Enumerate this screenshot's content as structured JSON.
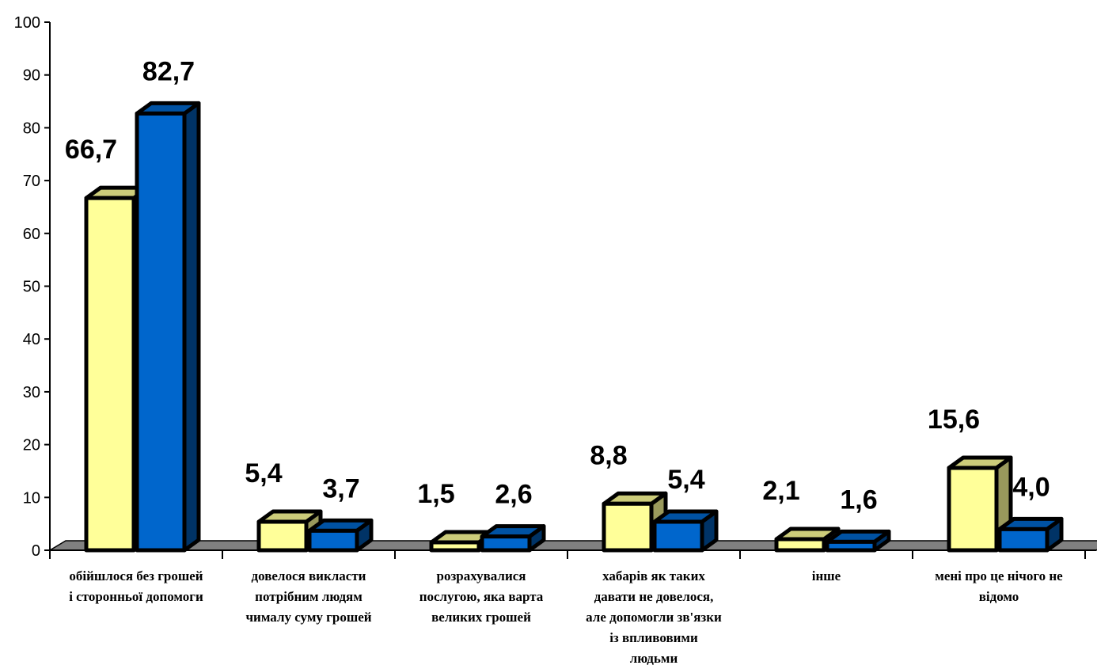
{
  "chart_data": {
    "type": "bar",
    "title": "",
    "xlabel": "",
    "ylabel": "",
    "ylim": [
      0,
      100
    ],
    "yticks": [
      "0",
      "10",
      "20",
      "30",
      "40",
      "50",
      "60",
      "70",
      "80",
      "90",
      "100"
    ],
    "categories": [
      [
        "обійшлося без грошей",
        "і сторонньої допомоги"
      ],
      [
        "довелося викласти",
        "потрібним людям",
        "чималу суму грошей"
      ],
      [
        "розрахувалися",
        "послугою, яка варта",
        "великих грошей"
      ],
      [
        "хабарів як таких",
        "давати не довелося,",
        "але допомогли зв'язки",
        "із впливовими",
        "людьми"
      ],
      [
        "інше"
      ],
      [
        "мені про це нічого не",
        "відомо"
      ]
    ],
    "series": [
      {
        "values": [
          66.7,
          5.4,
          1.5,
          8.8,
          2.1,
          15.6
        ],
        "labels": [
          "66,7",
          "5,4",
          "1,5",
          "8,8",
          "2,1",
          "15,6"
        ],
        "colors": {
          "front": "#FFFF99",
          "top": "#CCCC7A",
          "side": "#99995C"
        }
      },
      {
        "values": [
          82.7,
          3.7,
          2.6,
          5.4,
          1.6,
          4.0
        ],
        "labels": [
          "82,7",
          "3,7",
          "2,6",
          "5,4",
          "1,6",
          "4,0"
        ],
        "colors": {
          "front": "#0066CC",
          "top": "#0052A3",
          "side": "#003366"
        }
      }
    ],
    "floor_color": "#808080",
    "grid": false,
    "legend": "none"
  }
}
